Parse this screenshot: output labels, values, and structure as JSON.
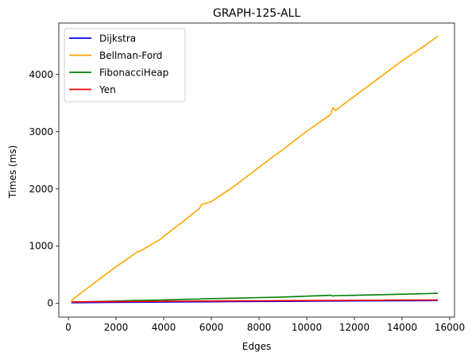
{
  "chart_data": {
    "type": "line",
    "title": "GRAPH-125-ALL",
    "xlabel": "Edges",
    "ylabel": "Times (ms)",
    "xlim": [
      -400,
      16200
    ],
    "ylim": [
      -240,
      4900
    ],
    "xticks": [
      0,
      2000,
      4000,
      6000,
      8000,
      10000,
      12000,
      14000,
      16000
    ],
    "yticks": [
      0,
      1000,
      2000,
      3000,
      4000
    ],
    "grid": false,
    "legend_position": "top-left",
    "x": [
      125,
      1000,
      2000,
      2900,
      3000,
      3900,
      4000,
      4900,
      5500,
      5600,
      6000,
      7000,
      8000,
      9000,
      10000,
      11000,
      11100,
      11200,
      12000,
      13000,
      14000,
      15000,
      15500
    ],
    "series": [
      {
        "name": "Dijkstra",
        "color": "#0000ff",
        "values": [
          10,
          14,
          17,
          20,
          20,
          22,
          23,
          25,
          27,
          27,
          28,
          31,
          33,
          35,
          38,
          40,
          40,
          40,
          42,
          44,
          46,
          48,
          50
        ]
      },
      {
        "name": "Bellman-Ford",
        "color": "#ffa500",
        "values": [
          50,
          330,
          640,
          900,
          910,
          1130,
          1170,
          1460,
          1660,
          1730,
          1780,
          2060,
          2380,
          2690,
          3010,
          3300,
          3420,
          3370,
          3620,
          3930,
          4240,
          4520,
          4670
        ]
      },
      {
        "name": "FibonacciHeap",
        "color": "#008000",
        "values": [
          20,
          30,
          40,
          50,
          52,
          58,
          60,
          70,
          75,
          80,
          82,
          90,
          100,
          110,
          125,
          140,
          130,
          135,
          140,
          150,
          160,
          170,
          175
        ]
      },
      {
        "name": "Yen",
        "color": "#ff0000",
        "values": [
          25,
          28,
          30,
          33,
          33,
          35,
          36,
          38,
          40,
          40,
          41,
          43,
          45,
          47,
          49,
          51,
          51,
          51,
          53,
          55,
          57,
          59,
          60
        ]
      }
    ]
  }
}
